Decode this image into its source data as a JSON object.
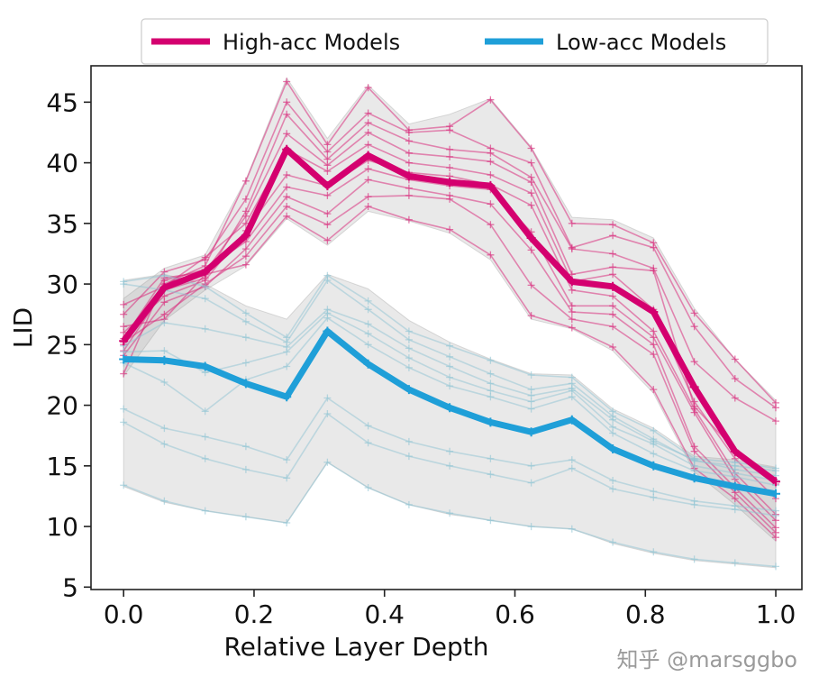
{
  "chart_data": {
    "type": "line",
    "title": "",
    "xlabel": "Relative Layer Depth",
    "ylabel": "LID",
    "xlim": [
      -0.05,
      1.04
    ],
    "ylim": [
      4.8,
      48
    ],
    "xticks": [
      "0.0",
      "0.2",
      "0.4",
      "0.6",
      "0.8",
      "1.0"
    ],
    "yticks": [
      "5",
      "10",
      "15",
      "20",
      "25",
      "30",
      "35",
      "40",
      "45"
    ],
    "legend": {
      "placement": "top",
      "entries": [
        "High-acc Models",
        "Low-acc Models"
      ]
    },
    "x": [
      0.0,
      0.0625,
      0.125,
      0.1875,
      0.25,
      0.3125,
      0.375,
      0.4375,
      0.5,
      0.5625,
      0.625,
      0.6875,
      0.75,
      0.8125,
      0.875,
      0.9375,
      1.0
    ],
    "series": [
      {
        "name": "High-acc Models",
        "color": "#d4006f",
        "mean": [
          25.3,
          29.7,
          31.0,
          34.0,
          41.1,
          38.1,
          40.6,
          38.9,
          38.4,
          38.1,
          33.8,
          30.2,
          29.8,
          27.7,
          21.5,
          16.2,
          13.7
        ],
        "band_upper": [
          28.8,
          31.3,
          32.4,
          38.6,
          47.0,
          42.0,
          46.4,
          43.2,
          44.0,
          45.3,
          41.3,
          35.5,
          35.3,
          33.8,
          28.0,
          23.8,
          20.4
        ],
        "band_lower": [
          22.4,
          27.0,
          29.5,
          31.5,
          35.4,
          33.2,
          36.0,
          35.2,
          34.2,
          32.0,
          27.1,
          26.3,
          24.5,
          21.0,
          14.5,
          11.8,
          8.8
        ],
        "models": [
          [
            25.0,
            30.0,
            31.5,
            38.5,
            46.7,
            41.5,
            46.2,
            42.7,
            43.0,
            45.2,
            41.2,
            35.0,
            34.9,
            33.4,
            27.6,
            23.8,
            20.2
          ],
          [
            27.5,
            31.0,
            32.0,
            37.0,
            45.0,
            40.9,
            44.1,
            42.5,
            42.7,
            41.2,
            40.0,
            33.0,
            34.0,
            33.0,
            26.5,
            22.2,
            19.8
          ],
          [
            24.5,
            29.5,
            30.5,
            36.0,
            44.0,
            40.3,
            43.3,
            41.8,
            41.1,
            40.8,
            38.8,
            32.9,
            32.5,
            31.3,
            23.6,
            20.6,
            18.7
          ],
          [
            25.5,
            30.5,
            31.0,
            35.6,
            42.4,
            39.8,
            42.5,
            40.8,
            40.5,
            40.1,
            38.4,
            30.8,
            31.4,
            31.1,
            19.9,
            16.3,
            13.5
          ],
          [
            28.3,
            29.8,
            32.2,
            35.0,
            41.1,
            39.3,
            41.5,
            40.0,
            39.6,
            39.0,
            37.5,
            30.2,
            30.8,
            27.9,
            20.3,
            15.6,
            12.3
          ],
          [
            26.0,
            29.0,
            30.3,
            34.4,
            39.0,
            38.1,
            40.2,
            39.2,
            38.9,
            38.2,
            36.5,
            29.5,
            29.0,
            26.1,
            19.7,
            14.4,
            11.0
          ],
          [
            22.6,
            30.3,
            31.2,
            33.5,
            38.0,
            37.3,
            39.5,
            38.6,
            38.1,
            37.8,
            34.3,
            28.2,
            28.2,
            25.6,
            19.4,
            13.9,
            10.5
          ],
          [
            24.1,
            28.5,
            29.8,
            32.9,
            37.2,
            35.8,
            38.6,
            37.9,
            37.3,
            36.6,
            32.8,
            27.7,
            27.5,
            25.0,
            16.6,
            13.2,
            9.9
          ],
          [
            25.2,
            27.5,
            30.0,
            32.3,
            36.4,
            34.9,
            37.2,
            37.3,
            37.0,
            34.9,
            29.9,
            27.1,
            26.5,
            24.2,
            16.2,
            12.8,
            9.5
          ],
          [
            26.5,
            27.1,
            30.8,
            31.6,
            35.6,
            33.6,
            36.4,
            35.3,
            34.5,
            32.4,
            27.4,
            26.4,
            24.8,
            21.3,
            14.8,
            12.3,
            9.1
          ]
        ]
      },
      {
        "name": "Low-acc Models",
        "color": "#1f9fd8",
        "mean": [
          23.8,
          23.7,
          23.2,
          21.8,
          20.7,
          26.1,
          23.4,
          21.3,
          19.8,
          18.6,
          17.8,
          18.8,
          16.4,
          15.0,
          14.0,
          13.3,
          12.7
        ],
        "band_upper": [
          30.3,
          30.8,
          30.0,
          28.2,
          27.1,
          30.8,
          29.6,
          27.0,
          25.2,
          23.8,
          22.6,
          22.5,
          19.7,
          18.1,
          15.8,
          15.5,
          14.9
        ],
        "band_lower": [
          13.3,
          12.0,
          11.3,
          10.8,
          10.3,
          15.3,
          13.2,
          11.8,
          11.0,
          10.5,
          10.0,
          9.8,
          8.6,
          7.8,
          7.2,
          6.9,
          6.6
        ],
        "models": [
          [
            30.2,
            30.7,
            29.8,
            27.6,
            25.6,
            30.7,
            28.6,
            26.1,
            24.9,
            23.7,
            22.5,
            22.3,
            19.5,
            17.9,
            15.6,
            15.3,
            14.8
          ],
          [
            30.0,
            29.5,
            28.8,
            26.9,
            25.2,
            30.3,
            27.9,
            25.4,
            24.0,
            22.6,
            21.3,
            21.8,
            19.1,
            17.2,
            15.4,
            15.0,
            14.6
          ],
          [
            24.9,
            26.8,
            26.3,
            25.6,
            24.8,
            27.9,
            26.7,
            24.7,
            23.2,
            21.8,
            20.8,
            21.4,
            18.8,
            17.0,
            15.5,
            14.7,
            14.2
          ],
          [
            24.4,
            24.5,
            22.7,
            23.5,
            24.4,
            27.6,
            25.9,
            23.9,
            22.3,
            21.2,
            20.3,
            21.2,
            18.2,
            16.8,
            15.0,
            14.4,
            13.8
          ],
          [
            23.5,
            21.9,
            19.5,
            22.1,
            23.2,
            27.2,
            25.0,
            23.1,
            21.6,
            20.7,
            19.7,
            20.7,
            17.7,
            16.0,
            14.6,
            14.1,
            13.4
          ],
          [
            19.7,
            18.1,
            17.4,
            16.6,
            15.5,
            20.6,
            18.3,
            17.0,
            16.2,
            15.6,
            15.0,
            15.5,
            13.8,
            12.9,
            12.1,
            11.7,
            11.3
          ],
          [
            18.6,
            16.8,
            15.6,
            14.7,
            14.0,
            19.3,
            16.9,
            15.8,
            15.0,
            14.3,
            13.6,
            14.8,
            13.1,
            12.4,
            11.8,
            11.4,
            10.9
          ],
          [
            13.4,
            12.1,
            11.3,
            10.8,
            10.3,
            15.3,
            13.2,
            11.8,
            11.1,
            10.5,
            10.0,
            9.8,
            8.7,
            7.9,
            7.3,
            7.0,
            6.7
          ]
        ]
      }
    ]
  },
  "watermark": "知乎 @marsggbo"
}
